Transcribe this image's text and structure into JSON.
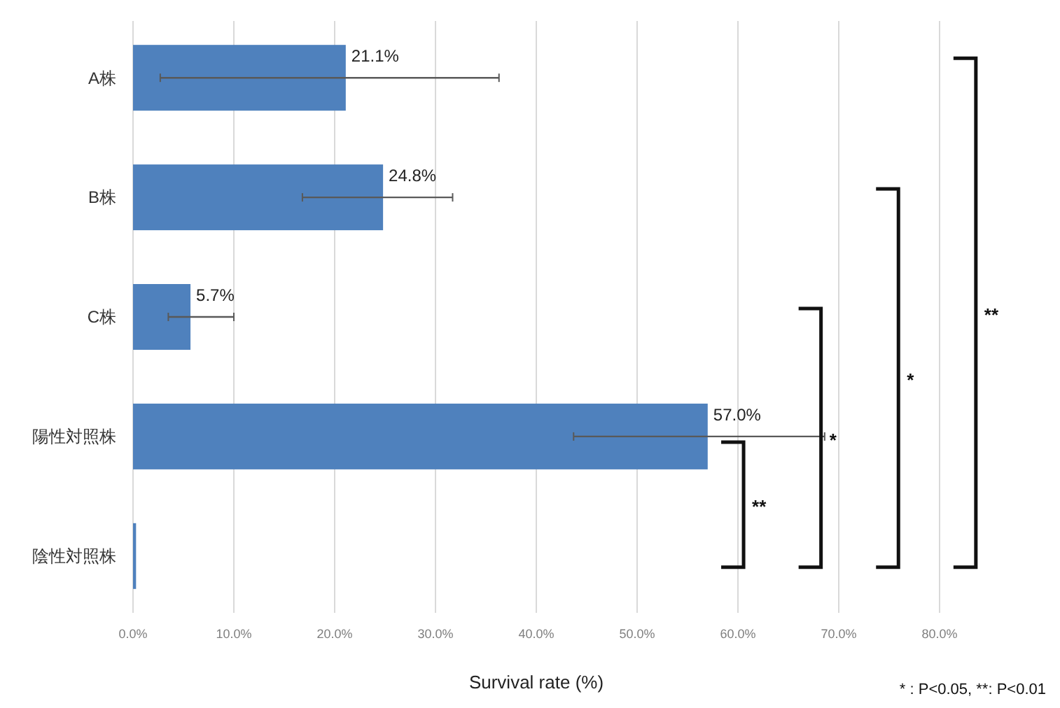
{
  "chart_data": {
    "type": "bar",
    "orientation": "horizontal",
    "xlabel": "Survival rate (%)",
    "categories": [
      "A株",
      "B株",
      "C株",
      "陽性対照株",
      "陰性対照株"
    ],
    "values": [
      21.1,
      24.8,
      5.7,
      57.0,
      0.3
    ],
    "value_labels": [
      "21.1%",
      "24.8%",
      "5.7%",
      "57.0%",
      null
    ],
    "errors": [
      [
        2.7,
        36.3
      ],
      [
        16.8,
        31.7
      ],
      [
        3.5,
        10.0
      ],
      [
        43.7,
        68.6
      ],
      null
    ],
    "color": "#4f81bd",
    "xlim": [
      0,
      80
    ],
    "xticks": [
      {
        "value": 0,
        "label": "0.0%"
      },
      {
        "value": 10,
        "label": "10.0%"
      },
      {
        "value": 20,
        "label": "20.0%"
      },
      {
        "value": 30,
        "label": "30.0%"
      },
      {
        "value": 40,
        "label": "40.0%"
      },
      {
        "value": 50,
        "label": "50.0%"
      },
      {
        "value": 60,
        "label": "60.0%"
      },
      {
        "value": 70,
        "label": "70.0%"
      },
      {
        "value": 80,
        "label": "80.0%"
      }
    ],
    "grid": "x",
    "annotations": [
      "**",
      "*",
      "*",
      "**",
      "* : P<0.05, **: P<0.01"
    ]
  }
}
